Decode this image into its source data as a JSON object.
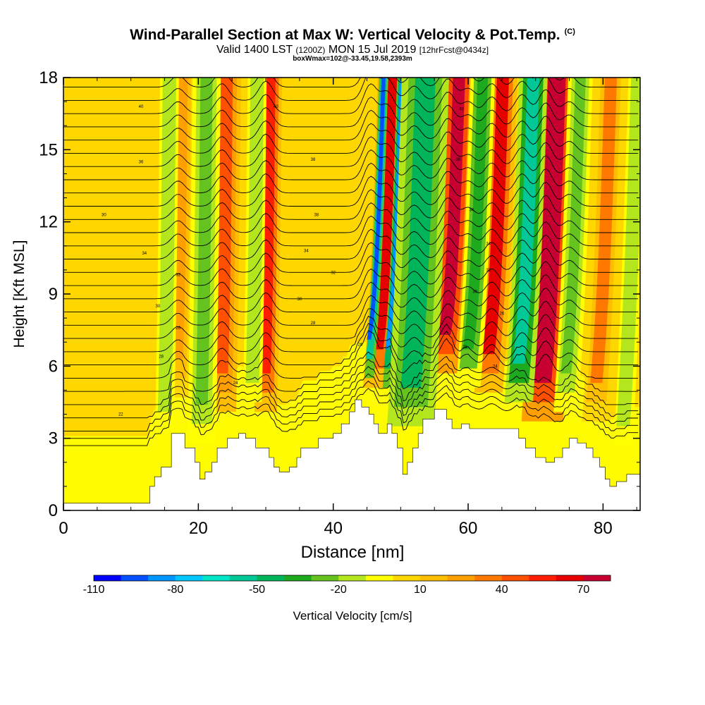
{
  "header": {
    "title": "Wind-Parallel Section at Max W: Vertical Velocity & Pot.Temp.",
    "copyright": "(C)",
    "subtitle_main": "Valid 1400 LST",
    "subtitle_utc": "(1200Z)",
    "subtitle_date": "MON 15 Jul 2019",
    "subtitle_fcst": "[12hrFcst@0434z]",
    "boxinfo": "boxWmax=102@-33.45,19.58,2393m"
  },
  "chart_data": {
    "type": "heatmap",
    "title": "Wind-Parallel Section at Max W: Vertical Velocity & Pot.Temp.",
    "xlabel": "Distance [nm]",
    "ylabel": "Height [Kft MSL]",
    "xlim": [
      0,
      85.5
    ],
    "ylim": [
      0,
      18
    ],
    "x_ticks": [
      0,
      20,
      40,
      60,
      80
    ],
    "y_ticks": [
      0,
      3,
      6,
      9,
      12,
      15,
      18
    ],
    "colorbar": {
      "title": "Vertical Velocity [cm/s]",
      "labels": [
        "-110",
        "-80",
        "-50",
        "-20",
        "10",
        "40",
        "70"
      ],
      "levels": [
        -110,
        -100,
        -90,
        -80,
        -70,
        -60,
        -50,
        -40,
        -30,
        -20,
        -10,
        0,
        10,
        20,
        30,
        40,
        50,
        60,
        70,
        80
      ],
      "colors": [
        "#0000ff",
        "#0050ff",
        "#0096ff",
        "#00c8ff",
        "#00e6c8",
        "#00c896",
        "#00b45a",
        "#1eaa1e",
        "#64c31e",
        "#b4e61e",
        "#ffff00",
        "#ffd700",
        "#ffbe00",
        "#ffa000",
        "#ff7800",
        "#ff5000",
        "#ff1e00",
        "#e60000",
        "#c80032"
      ]
    },
    "background_range": "0 to 10 cm/s",
    "updraft_bands": [
      {
        "x": 17,
        "w": 1.2,
        "value": 20
      },
      {
        "x": 23.5,
        "w": 1.5,
        "value": 40
      },
      {
        "x": 30,
        "w": 1.2,
        "value": 50
      },
      {
        "x": 46.5,
        "w": 1.5,
        "value": 60
      },
      {
        "x": 56.5,
        "w": 1.5,
        "value": 70
      },
      {
        "x": 63,
        "w": 1.5,
        "value": 60
      },
      {
        "x": 71,
        "w": 2.2,
        "value": 80
      },
      {
        "x": 79,
        "w": 1.5,
        "value": 30
      }
    ],
    "downdraft_bands": [
      {
        "x": 15,
        "w": 1.0,
        "value": -20
      },
      {
        "x": 20.5,
        "w": 1.5,
        "value": -30
      },
      {
        "x": 28,
        "w": 1.0,
        "value": -20
      },
      {
        "x": 45.3,
        "w": 0.5,
        "value": -100
      },
      {
        "x": 48,
        "w": 0.5,
        "value": -90
      },
      {
        "x": 51.5,
        "w": 2.5,
        "value": -50
      },
      {
        "x": 60,
        "w": 1.3,
        "value": -40
      },
      {
        "x": 67.5,
        "w": 1.5,
        "value": -60
      },
      {
        "x": 74.5,
        "w": 1.3,
        "value": -30
      },
      {
        "x": 83,
        "w": 1.0,
        "value": -20
      }
    ],
    "terrain_kft": [
      [
        0,
        0.3
      ],
      [
        12.8,
        0.3
      ],
      [
        12.8,
        1.0
      ],
      [
        13.5,
        1.0
      ],
      [
        13.5,
        1.4
      ],
      [
        14.5,
        1.4
      ],
      [
        14.5,
        1.8
      ],
      [
        16,
        1.8
      ],
      [
        16,
        3.2
      ],
      [
        18,
        3.2
      ],
      [
        18,
        2.6
      ],
      [
        19.5,
        2.6
      ],
      [
        19.5,
        2.0
      ],
      [
        20.2,
        2.0
      ],
      [
        20.2,
        1.3
      ],
      [
        21,
        1.3
      ],
      [
        21,
        1.6
      ],
      [
        22,
        1.6
      ],
      [
        22,
        2.0
      ],
      [
        22.8,
        2.0
      ],
      [
        22.8,
        2.6
      ],
      [
        24.3,
        2.6
      ],
      [
        24.3,
        3.0
      ],
      [
        26,
        3.0
      ],
      [
        26,
        3.2
      ],
      [
        27,
        3.2
      ],
      [
        27,
        3.0
      ],
      [
        28.5,
        3.0
      ],
      [
        28.5,
        2.6
      ],
      [
        30.5,
        2.6
      ],
      [
        30.5,
        2.2
      ],
      [
        31.2,
        2.2
      ],
      [
        31.2,
        1.8
      ],
      [
        32,
        1.8
      ],
      [
        32,
        1.6
      ],
      [
        33.5,
        1.6
      ],
      [
        33.5,
        1.8
      ],
      [
        34.6,
        1.8
      ],
      [
        34.6,
        2.2
      ],
      [
        35.2,
        2.2
      ],
      [
        35.2,
        2.6
      ],
      [
        37.8,
        2.6
      ],
      [
        37.8,
        3.0
      ],
      [
        40,
        3.0
      ],
      [
        40,
        3.2
      ],
      [
        41.2,
        3.2
      ],
      [
        41.2,
        3.6
      ],
      [
        42.4,
        3.6
      ],
      [
        42.4,
        4.1
      ],
      [
        43.2,
        4.1
      ],
      [
        43.2,
        4.6
      ],
      [
        44.2,
        4.6
      ],
      [
        44.2,
        4.3
      ],
      [
        45.3,
        4.3
      ],
      [
        45.3,
        4.0
      ],
      [
        46,
        4.0
      ],
      [
        46,
        3.6
      ],
      [
        46.7,
        3.6
      ],
      [
        46.7,
        3.2
      ],
      [
        48,
        3.2
      ],
      [
        48,
        3.6
      ],
      [
        48.7,
        3.6
      ],
      [
        48.7,
        3.2
      ],
      [
        49.5,
        3.2
      ],
      [
        49.5,
        2.6
      ],
      [
        50.3,
        2.6
      ],
      [
        50.3,
        1.5
      ],
      [
        51,
        1.5
      ],
      [
        51,
        2.0
      ],
      [
        51.8,
        2.0
      ],
      [
        51.8,
        2.6
      ],
      [
        52.6,
        2.6
      ],
      [
        52.6,
        3.2
      ],
      [
        53.3,
        3.2
      ],
      [
        53.3,
        3.8
      ],
      [
        55,
        3.8
      ],
      [
        55,
        4.2
      ],
      [
        56.8,
        4.2
      ],
      [
        56.8,
        3.8
      ],
      [
        57.6,
        3.8
      ],
      [
        57.6,
        3.4
      ],
      [
        59,
        3.4
      ],
      [
        59,
        3.6
      ],
      [
        60.2,
        3.6
      ],
      [
        60.2,
        3.4
      ],
      [
        67.5,
        3.4
      ],
      [
        67.5,
        3.0
      ],
      [
        68.5,
        3.0
      ],
      [
        68.5,
        2.6
      ],
      [
        70,
        2.6
      ],
      [
        70,
        2.2
      ],
      [
        71.5,
        2.2
      ],
      [
        71.5,
        2.0
      ],
      [
        72.8,
        2.0
      ],
      [
        72.8,
        2.2
      ],
      [
        74,
        2.2
      ],
      [
        74,
        2.6
      ],
      [
        75,
        2.6
      ],
      [
        75,
        3.0
      ],
      [
        76.2,
        3.0
      ],
      [
        76.2,
        2.8
      ],
      [
        77.5,
        2.8
      ],
      [
        77.5,
        2.6
      ],
      [
        78.5,
        2.6
      ],
      [
        78.5,
        2.2
      ],
      [
        79.5,
        2.2
      ],
      [
        79.5,
        1.8
      ],
      [
        80.3,
        1.8
      ],
      [
        80.3,
        1.3
      ],
      [
        81,
        1.3
      ],
      [
        81,
        1.0
      ],
      [
        82,
        1.0
      ],
      [
        82,
        1.2
      ],
      [
        83.5,
        1.2
      ],
      [
        83.5,
        1.5
      ],
      [
        85.5,
        1.5
      ]
    ],
    "isentrope_labels": [
      {
        "x": 11.5,
        "y": 16.8,
        "text": "40"
      },
      {
        "x": 31.5,
        "y": 16.8,
        "text": "40"
      },
      {
        "x": 11.5,
        "y": 14.5,
        "text": "36"
      },
      {
        "x": 37,
        "y": 14.6,
        "text": "38"
      },
      {
        "x": 6,
        "y": 12.3,
        "text": "30"
      },
      {
        "x": 12,
        "y": 10.7,
        "text": "34"
      },
      {
        "x": 17,
        "y": 9.8,
        "text": "32"
      },
      {
        "x": 14,
        "y": 8.5,
        "text": "30"
      },
      {
        "x": 17,
        "y": 7.6,
        "text": "26"
      },
      {
        "x": 14.5,
        "y": 6.4,
        "text": "28"
      },
      {
        "x": 25.5,
        "y": 5.3,
        "text": "24"
      },
      {
        "x": 8.5,
        "y": 4.0,
        "text": "22"
      },
      {
        "x": 37.5,
        "y": 12.3,
        "text": "38"
      },
      {
        "x": 36,
        "y": 10.8,
        "text": "34"
      },
      {
        "x": 40,
        "y": 9.9,
        "text": "32"
      },
      {
        "x": 35,
        "y": 8.8,
        "text": "30"
      },
      {
        "x": 37,
        "y": 7.8,
        "text": "28"
      },
      {
        "x": 44,
        "y": 6.9,
        "text": "26"
      },
      {
        "x": 59,
        "y": 16.7,
        "text": "40"
      },
      {
        "x": 58.5,
        "y": 14.6,
        "text": "38"
      },
      {
        "x": 60.5,
        "y": 12.5,
        "text": "34"
      },
      {
        "x": 63,
        "y": 11.1,
        "text": "34"
      },
      {
        "x": 63,
        "y": 10.0,
        "text": "32"
      },
      {
        "x": 61,
        "y": 9.1,
        "text": "30"
      },
      {
        "x": 65,
        "y": 8.2,
        "text": "26"
      },
      {
        "x": 59.5,
        "y": 6.8,
        "text": "28"
      },
      {
        "x": 64,
        "y": 6.0,
        "text": "24"
      }
    ]
  }
}
